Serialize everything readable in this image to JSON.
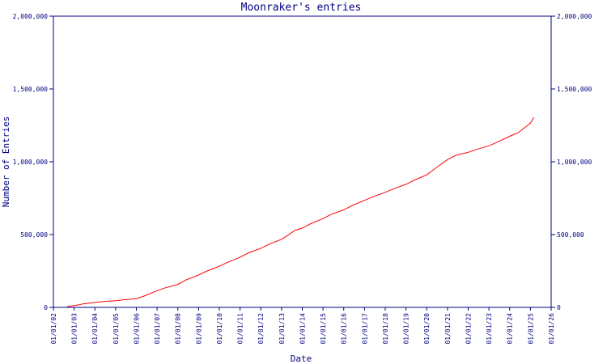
{
  "chart_data": {
    "type": "line",
    "title": "Moonraker's entries",
    "xlabel": "Date",
    "ylabel": "Number of Entries",
    "ylim": [
      0,
      2000000
    ],
    "y_ticks": [
      {
        "value": 0,
        "label": "0"
      },
      {
        "value": 500000,
        "label": "500,000"
      },
      {
        "value": 1000000,
        "label": "1,000,000"
      },
      {
        "value": 1500000,
        "label": "1,500,000"
      },
      {
        "value": 2000000,
        "label": "2,000,000"
      }
    ],
    "x_ticks": [
      "01/01/02",
      "01/01/03",
      "01/01/04",
      "01/01/05",
      "01/01/06",
      "01/01/07",
      "01/01/08",
      "01/01/09",
      "01/01/10",
      "01/01/11",
      "01/01/12",
      "01/01/13",
      "01/01/14",
      "01/01/15",
      "01/01/16",
      "01/01/17",
      "01/01/18",
      "01/01/19",
      "01/01/20",
      "01/01/21",
      "01/01/22",
      "01/01/23",
      "01/01/24",
      "01/01/25",
      "01/01/26"
    ],
    "grid": false,
    "colors": {
      "axis": "#000080",
      "series": "#ff0000"
    },
    "series": [
      {
        "x": [
          "2002-09-01",
          "2003-01-01",
          "2003-04-01",
          "2003-06-01",
          "2003-09-01",
          "2004-01-01",
          "2004-06-01",
          "2005-01-01",
          "2005-06-01",
          "2006-01-01",
          "2006-06-01",
          "2007-01-01",
          "2007-06-01",
          "2008-01-01",
          "2008-06-01",
          "2009-01-01",
          "2009-06-01",
          "2010-01-01",
          "2010-06-01",
          "2011-01-01",
          "2011-06-01",
          "2012-01-01",
          "2012-06-01",
          "2013-01-01",
          "2013-04-01",
          "2013-09-01",
          "2014-01-01",
          "2014-06-01",
          "2015-01-01",
          "2015-06-01",
          "2016-01-01",
          "2016-06-01",
          "2017-01-01",
          "2017-06-01",
          "2018-01-01",
          "2018-06-01",
          "2019-01-01",
          "2019-06-01",
          "2020-01-01",
          "2020-06-01",
          "2021-01-01",
          "2021-06-01",
          "2022-01-01",
          "2022-06-01",
          "2023-01-01",
          "2023-06-01",
          "2024-01-01",
          "2024-06-01",
          "2025-01-01",
          "2025-03-01"
        ],
        "values": [
          5000,
          12000,
          18000,
          24000,
          28000,
          34000,
          40000,
          46000,
          53000,
          60000,
          80000,
          115000,
          135000,
          158000,
          190000,
          222000,
          250000,
          283000,
          310000,
          345000,
          375000,
          405000,
          435000,
          468000,
          490000,
          530000,
          545000,
          575000,
          610000,
          640000,
          670000,
          700000,
          735000,
          760000,
          790000,
          815000,
          845000,
          875000,
          910000,
          955000,
          1015000,
          1045000,
          1065000,
          1085000,
          1110000,
          1135000,
          1175000,
          1200000,
          1265000,
          1305000
        ]
      }
    ]
  }
}
